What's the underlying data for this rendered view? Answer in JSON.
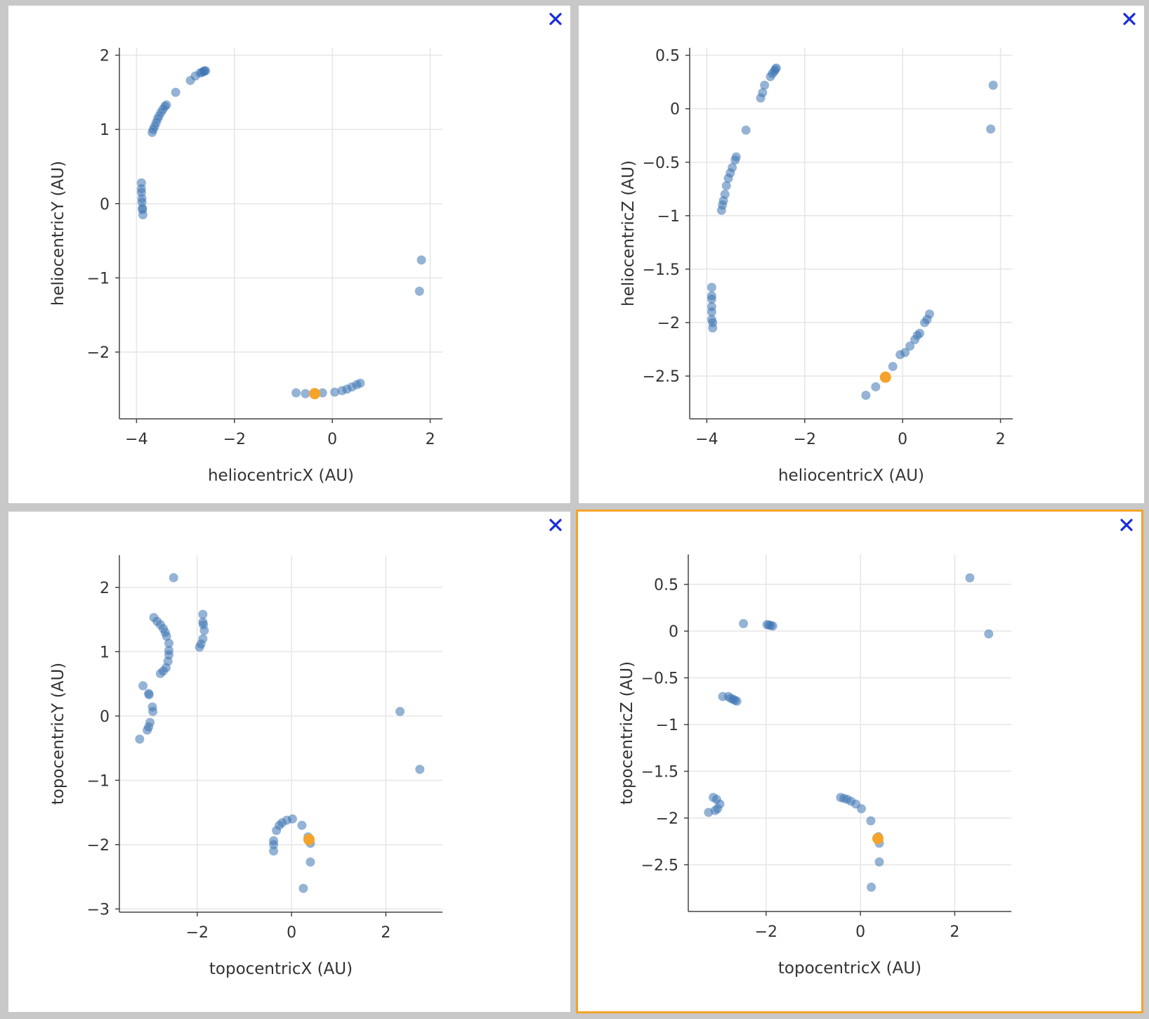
{
  "colors": {
    "background": "#c8c8c8",
    "point": "#3d74b2",
    "highlight": "#f5a32a",
    "close_icon": "#1a2bdc",
    "selected_border": "#f5a32a"
  },
  "panels": [
    {
      "selected": false,
      "chart_data": {
        "type": "scatter",
        "xlabel": "heliocentricX (AU)",
        "ylabel": "heliocentricY (AU)",
        "xlim": [
          -4.35,
          2.25
        ],
        "ylim": [
          -2.9,
          2.1
        ],
        "xticks": [
          -4,
          -2,
          0,
          2
        ],
        "xticklabels": [
          "−4",
          "−2",
          "0",
          "2"
        ],
        "yticks": [
          2,
          1,
          0,
          -1,
          -2
        ],
        "yticklabels": [
          "2",
          "1",
          "0",
          "−1",
          "−2"
        ],
        "points": [
          [
            -3.68,
            0.96
          ],
          [
            -3.66,
            1.0
          ],
          [
            -3.63,
            1.04
          ],
          [
            -3.6,
            1.09
          ],
          [
            -3.57,
            1.14
          ],
          [
            -3.54,
            1.18
          ],
          [
            -3.5,
            1.23
          ],
          [
            -3.46,
            1.27
          ],
          [
            -3.42,
            1.31
          ],
          [
            -3.39,
            1.33
          ],
          [
            -3.2,
            1.5
          ],
          [
            -2.9,
            1.66
          ],
          [
            -2.8,
            1.72
          ],
          [
            -2.7,
            1.76
          ],
          [
            -2.66,
            1.77
          ],
          [
            -2.63,
            1.78
          ],
          [
            -2.61,
            1.79
          ],
          [
            -2.59,
            1.79
          ],
          [
            -3.9,
            0.28
          ],
          [
            -3.9,
            0.2
          ],
          [
            -3.9,
            0.15
          ],
          [
            -3.89,
            0.07
          ],
          [
            -3.89,
            0.02
          ],
          [
            -3.88,
            -0.06
          ],
          [
            -3.88,
            -0.08
          ],
          [
            -3.87,
            -0.15
          ],
          [
            1.82,
            -0.76
          ],
          [
            1.78,
            -1.18
          ],
          [
            -0.74,
            -2.55
          ],
          [
            -0.55,
            -2.56
          ],
          [
            -0.2,
            -2.55
          ],
          [
            0.05,
            -2.54
          ],
          [
            0.2,
            -2.52
          ],
          [
            0.3,
            -2.5
          ],
          [
            0.4,
            -2.47
          ],
          [
            0.5,
            -2.44
          ],
          [
            0.57,
            -2.42
          ]
        ],
        "highlight": [
          [
            -0.36,
            -2.56
          ]
        ]
      }
    },
    {
      "selected": false,
      "chart_data": {
        "type": "scatter",
        "xlabel": "heliocentricX (AU)",
        "ylabel": "heliocentricZ (AU)",
        "xlim": [
          -4.35,
          2.25
        ],
        "ylim": [
          -2.9,
          0.57
        ],
        "xticks": [
          -4,
          -2,
          0,
          2
        ],
        "xticklabels": [
          "−4",
          "−2",
          "0",
          "2"
        ],
        "yticks": [
          0.5,
          0,
          -0.5,
          -1,
          -1.5,
          -2,
          -2.5
        ],
        "yticklabels": [
          "0.5",
          "0",
          "−0.5",
          "−1",
          "−1.5",
          "−2",
          "−2.5"
        ],
        "points": [
          [
            -2.9,
            0.1
          ],
          [
            -2.86,
            0.15
          ],
          [
            -2.82,
            0.22
          ],
          [
            -2.7,
            0.3
          ],
          [
            -2.66,
            0.33
          ],
          [
            -2.62,
            0.35
          ],
          [
            -2.6,
            0.37
          ],
          [
            -2.58,
            0.38
          ],
          [
            -3.2,
            -0.2
          ],
          [
            -3.7,
            -0.95
          ],
          [
            -3.68,
            -0.9
          ],
          [
            -3.66,
            -0.86
          ],
          [
            -3.63,
            -0.8
          ],
          [
            -3.6,
            -0.72
          ],
          [
            -3.56,
            -0.65
          ],
          [
            -3.52,
            -0.6
          ],
          [
            -3.48,
            -0.55
          ],
          [
            -3.42,
            -0.48
          ],
          [
            -3.4,
            -0.45
          ],
          [
            -3.9,
            -1.67
          ],
          [
            -3.9,
            -1.75
          ],
          [
            -3.9,
            -1.78
          ],
          [
            -3.9,
            -1.85
          ],
          [
            -3.9,
            -1.9
          ],
          [
            -3.9,
            -1.97
          ],
          [
            -3.88,
            -2.0
          ],
          [
            -3.88,
            -2.05
          ],
          [
            1.85,
            0.22
          ],
          [
            1.8,
            -0.19
          ],
          [
            -0.75,
            -2.68
          ],
          [
            -0.55,
            -2.6
          ],
          [
            -0.2,
            -2.41
          ],
          [
            -0.05,
            -2.3
          ],
          [
            0.05,
            -2.28
          ],
          [
            0.15,
            -2.22
          ],
          [
            0.25,
            -2.16
          ],
          [
            0.3,
            -2.12
          ],
          [
            0.35,
            -2.1
          ],
          [
            0.45,
            -2.0
          ],
          [
            0.5,
            -1.97
          ],
          [
            0.55,
            -1.92
          ]
        ],
        "highlight": [
          [
            -0.35,
            -2.51
          ]
        ]
      }
    },
    {
      "selected": false,
      "chart_data": {
        "type": "scatter",
        "xlabel": "topocentricX (AU)",
        "ylabel": "topocentricY (AU)",
        "xlim": [
          -3.65,
          3.2
        ],
        "ylim": [
          -3.05,
          2.5
        ],
        "xticks": [
          -2,
          0,
          2
        ],
        "xticklabels": [
          "−2",
          "0",
          "2"
        ],
        "yticks": [
          2,
          1,
          0,
          -1,
          -2,
          -3
        ],
        "yticklabels": [
          "2",
          "1",
          "0",
          "−1",
          "−2",
          "−3"
        ],
        "points": [
          [
            -2.5,
            2.15
          ],
          [
            -2.92,
            1.53
          ],
          [
            -2.85,
            1.47
          ],
          [
            -2.78,
            1.42
          ],
          [
            -2.72,
            1.36
          ],
          [
            -2.68,
            1.3
          ],
          [
            -2.65,
            1.24
          ],
          [
            -2.6,
            1.13
          ],
          [
            -2.6,
            1.02
          ],
          [
            -2.6,
            0.95
          ],
          [
            -2.62,
            0.85
          ],
          [
            -2.66,
            0.75
          ],
          [
            -2.72,
            0.7
          ],
          [
            -2.78,
            0.66
          ],
          [
            -1.88,
            1.58
          ],
          [
            -1.88,
            1.46
          ],
          [
            -1.87,
            1.42
          ],
          [
            -1.85,
            1.33
          ],
          [
            -1.88,
            1.2
          ],
          [
            -1.92,
            1.12
          ],
          [
            -1.95,
            1.07
          ],
          [
            -3.15,
            0.47
          ],
          [
            -3.03,
            0.35
          ],
          [
            -3.02,
            0.33
          ],
          [
            -2.95,
            0.14
          ],
          [
            -2.94,
            0.07
          ],
          [
            -3.0,
            -0.1
          ],
          [
            -3.03,
            -0.17
          ],
          [
            -3.06,
            -0.22
          ],
          [
            -3.22,
            -0.36
          ],
          [
            2.3,
            0.07
          ],
          [
            2.72,
            -0.83
          ],
          [
            -0.38,
            -1.94
          ],
          [
            -0.38,
            -2.0
          ],
          [
            -0.38,
            -2.1
          ],
          [
            -0.32,
            -1.78
          ],
          [
            -0.26,
            -1.7
          ],
          [
            -0.2,
            -1.66
          ],
          [
            -0.1,
            -1.62
          ],
          [
            0.02,
            -1.6
          ],
          [
            0.22,
            -1.7
          ],
          [
            0.35,
            -1.88
          ],
          [
            0.4,
            -1.98
          ],
          [
            0.4,
            -2.27
          ],
          [
            0.25,
            -2.68
          ]
        ],
        "highlight": [
          [
            0.37,
            -1.92
          ]
        ]
      }
    },
    {
      "selected": true,
      "chart_data": {
        "type": "scatter",
        "xlabel": "topocentricX (AU)",
        "ylabel": "topocentricZ (AU)",
        "xlim": [
          -3.65,
          3.2
        ],
        "ylim": [
          -3.0,
          0.82
        ],
        "xticks": [
          -2,
          0,
          2
        ],
        "xticklabels": [
          "−2",
          "0",
          "2"
        ],
        "yticks": [
          0.5,
          0,
          -0.5,
          -1,
          -1.5,
          -2,
          -2.5
        ],
        "yticklabels": [
          "0.5",
          "0",
          "−0.5",
          "−1",
          "−1.5",
          "−2",
          "−2.5"
        ],
        "points": [
          [
            -2.48,
            0.08
          ],
          [
            -1.98,
            0.07
          ],
          [
            -1.94,
            0.065
          ],
          [
            -1.9,
            0.06
          ],
          [
            -1.86,
            0.055
          ],
          [
            -2.92,
            -0.7
          ],
          [
            -2.8,
            -0.7
          ],
          [
            -2.75,
            -0.72
          ],
          [
            -2.7,
            -0.73
          ],
          [
            -2.66,
            -0.74
          ],
          [
            -2.62,
            -0.75
          ],
          [
            -3.12,
            -1.78
          ],
          [
            -3.05,
            -1.8
          ],
          [
            -2.98,
            -1.85
          ],
          [
            -3.03,
            -1.9
          ],
          [
            -3.08,
            -1.92
          ],
          [
            -3.22,
            -1.94
          ],
          [
            2.32,
            0.57
          ],
          [
            2.72,
            -0.03
          ],
          [
            -0.42,
            -1.78
          ],
          [
            -0.35,
            -1.79
          ],
          [
            -0.28,
            -1.8
          ],
          [
            -0.2,
            -1.82
          ],
          [
            -0.1,
            -1.85
          ],
          [
            0.02,
            -1.9
          ],
          [
            0.22,
            -2.03
          ],
          [
            0.38,
            -2.2
          ],
          [
            0.4,
            -2.27
          ],
          [
            0.4,
            -2.47
          ],
          [
            0.23,
            -2.74
          ]
        ],
        "highlight": [
          [
            0.37,
            -2.22
          ]
        ]
      }
    }
  ]
}
